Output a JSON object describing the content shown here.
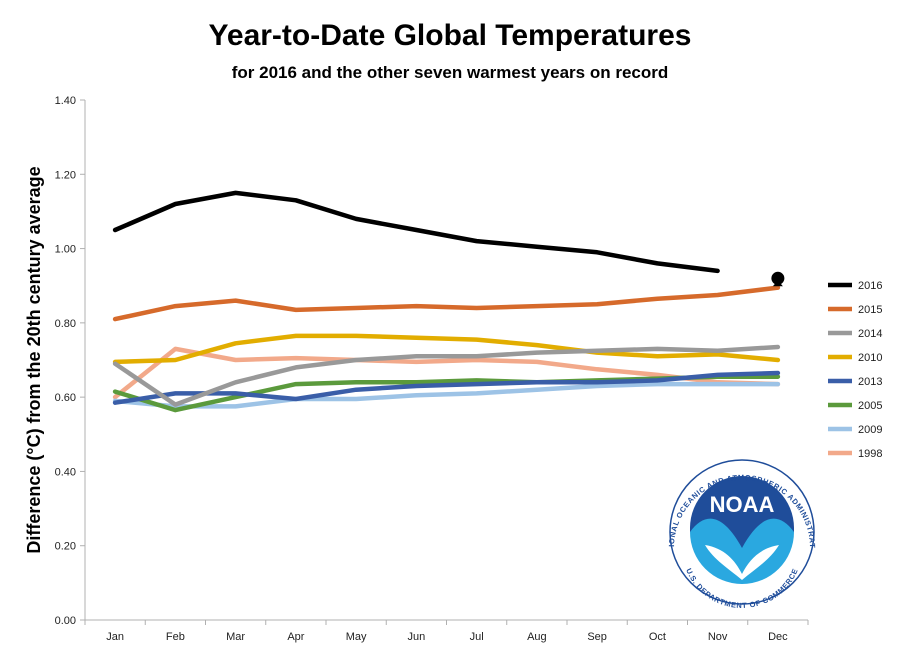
{
  "chart_data": {
    "type": "line",
    "title": "Year-to-Date Global Temperatures",
    "subtitle": "for 2016 and the other seven warmest years on record",
    "xlabel": "",
    "ylabel": "Difference (°C) from the 20th century average",
    "categories": [
      "Jan",
      "Feb",
      "Mar",
      "Apr",
      "May",
      "Jun",
      "Jul",
      "Aug",
      "Sep",
      "Oct",
      "Nov",
      "Dec"
    ],
    "ylim": [
      0,
      1.4
    ],
    "yticks": [
      "0.00",
      "0.20",
      "0.40",
      "0.60",
      "0.80",
      "1.00",
      "1.20",
      "1.40"
    ],
    "legend_position": "right",
    "grid": false,
    "series": [
      {
        "name": "2016",
        "color": "#000000",
        "values": [
          1.05,
          1.12,
          1.15,
          1.13,
          1.08,
          1.05,
          1.02,
          1.005,
          0.99,
          0.96,
          0.94,
          null
        ]
      },
      {
        "name": "2015",
        "color": "#d66a2b",
        "values": [
          0.81,
          0.845,
          0.86,
          0.835,
          0.84,
          0.845,
          0.84,
          0.845,
          0.85,
          0.865,
          0.875,
          0.895
        ]
      },
      {
        "name": "2014",
        "color": "#999999",
        "values": [
          0.69,
          0.58,
          0.64,
          0.68,
          0.7,
          0.71,
          0.71,
          0.72,
          0.725,
          0.73,
          0.725,
          0.735
        ]
      },
      {
        "name": "2010",
        "color": "#e2ad00",
        "values": [
          0.695,
          0.7,
          0.745,
          0.765,
          0.765,
          0.76,
          0.755,
          0.74,
          0.72,
          0.71,
          0.715,
          0.7
        ]
      },
      {
        "name": "2013",
        "color": "#3a5ea8",
        "values": [
          0.585,
          0.61,
          0.61,
          0.595,
          0.62,
          0.63,
          0.635,
          0.64,
          0.64,
          0.645,
          0.66,
          0.665
        ]
      },
      {
        "name": "2005",
        "color": "#5b9a3c",
        "values": [
          0.615,
          0.565,
          0.6,
          0.635,
          0.64,
          0.64,
          0.645,
          0.64,
          0.645,
          0.65,
          0.655,
          0.655
        ]
      },
      {
        "name": "2009",
        "color": "#9dc3e6",
        "values": [
          0.59,
          0.575,
          0.575,
          0.595,
          0.595,
          0.605,
          0.61,
          0.62,
          0.63,
          0.635,
          0.635,
          0.635
        ]
      },
      {
        "name": "1998",
        "color": "#f2a98a",
        "values": [
          0.6,
          0.73,
          0.7,
          0.705,
          0.7,
          0.695,
          0.7,
          0.695,
          0.675,
          0.66,
          0.64,
          0.635
        ]
      }
    ],
    "annotations": [
      {
        "type": "marker",
        "series": "2016",
        "x": "Dec",
        "y": 0.92,
        "shape": "circle",
        "color": "#000000"
      }
    ]
  },
  "logo": {
    "name": "NOAA",
    "ring_text": "NATIONAL OCEANIC AND ATMOSPHERIC ADMINISTRATION",
    "ring_text_bottom": "U.S. DEPARTMENT OF COMMERCE",
    "colors": {
      "dark_blue": "#1f4d9a",
      "light_blue": "#2aa8e0",
      "white": "#ffffff"
    }
  }
}
